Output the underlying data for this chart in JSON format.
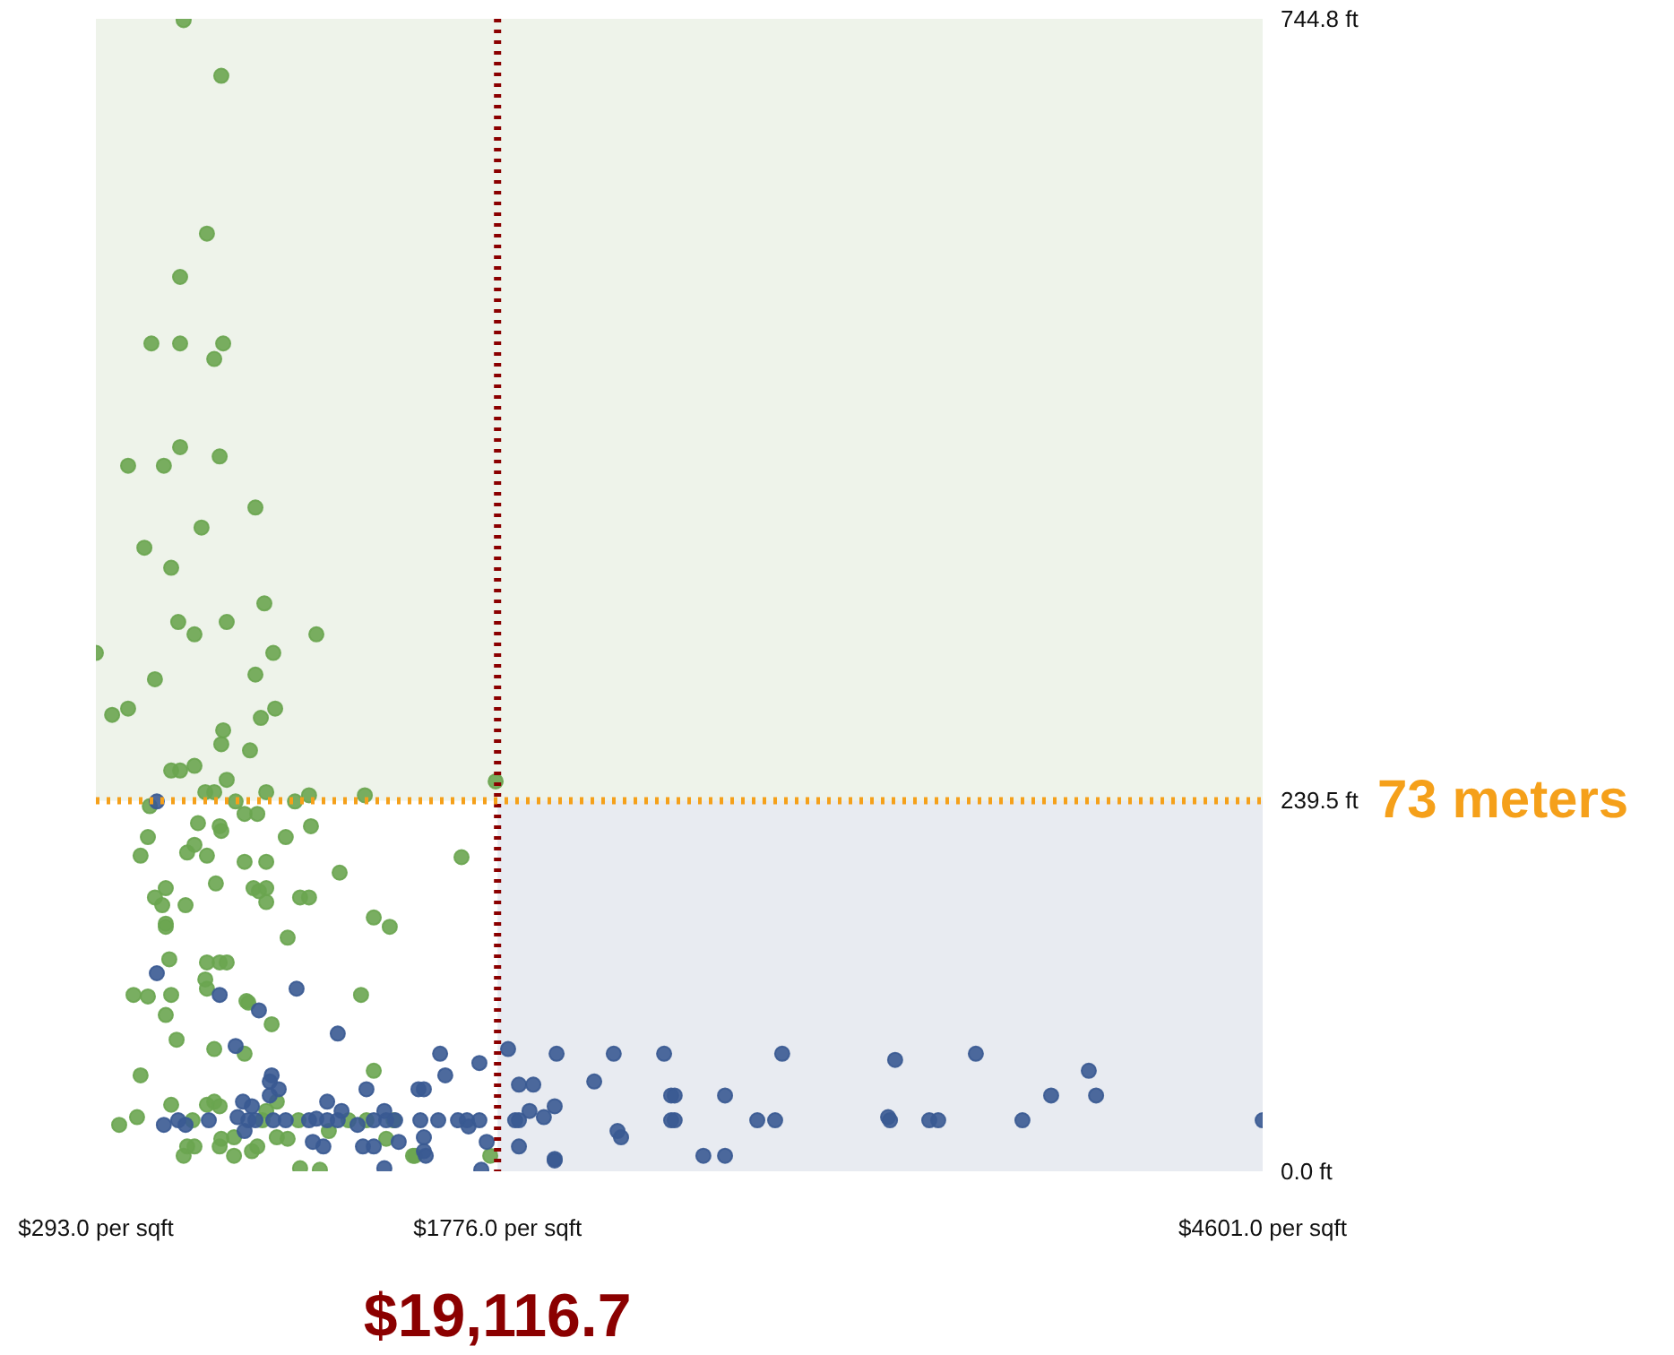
{
  "chart_data": {
    "type": "scatter",
    "marker": "circle",
    "xlim": [
      293,
      4601
    ],
    "ylim": [
      0,
      744.8
    ],
    "xticks": [
      {
        "value": 293,
        "label": "$293.0 per sqft"
      },
      {
        "value": 1776,
        "label": "$1776.0 per sqft"
      },
      {
        "value": 4601,
        "label": "$4601.0 per sqft"
      }
    ],
    "yticks": [
      {
        "value": 0,
        "label": "0.0 ft"
      },
      {
        "value": 239.5,
        "label": "239.5 ft"
      },
      {
        "value": 744.8,
        "label": "744.8 ft"
      }
    ],
    "bands": [
      {
        "axis": "x",
        "from": 1776,
        "to": 4601,
        "color": "#e8ebf1"
      },
      {
        "axis": "y",
        "from": 239.5,
        "to": 744.8,
        "color": "#eef3ea"
      }
    ],
    "annotations": [
      "$19,116.7"
    ],
    "ref_lines": [
      {
        "axis": "x",
        "value": 1776,
        "color": "#8b0000",
        "line_style": "dotted"
      },
      {
        "axis": "y",
        "value": 239.5,
        "label": "73 meters",
        "color": "#f5a01a",
        "line_style": "dotted"
      }
    ],
    "series": [
      {
        "color": "#6aa550",
        "x": [
          617,
          756,
          703,
          604,
          498,
          604,
          763,
          730,
          604,
          412,
          544,
          750,
          882,
          683,
          472,
          571,
          915,
          597,
          776,
          657,
          1107,
          293,
          948,
          882,
          511,
          353,
          412,
          955,
          902,
          763,
          756,
          862,
          571,
          604,
          657,
          776,
          697,
          730,
          922,
          1080,
          1286,
          809,
          1028,
          492,
          842,
          889,
          1769,
          670,
          750,
          756,
          1087,
          994,
          485,
          657,
          630,
          703,
          458,
          842,
          922,
          1193,
          736,
          551,
          511,
          538,
          624,
          875,
          895,
          922,
          922,
          1047,
          1080,
          1319,
          1378,
          551,
          551,
          1001,
          564,
          703,
          750,
          776,
          697,
          703,
          432,
          485,
          571,
          849,
          1272,
          1643,
          1319,
          856,
          942,
          551,
          591,
          730,
          842,
          458,
          961,
          571,
          703,
          730,
          750,
          922,
          379,
          445,
          650,
          908,
          1041,
          1226,
          1292,
          961,
          1001,
          1153,
          1365,
          750,
          756,
          803,
          657,
          630,
          617,
          803,
          869,
          889,
          1047,
          1120,
          1464,
          1392,
          1471,
          1749
        ],
        "values": [
          744,
          708,
          606,
          578,
          535,
          535,
          535,
          525,
          468,
          456,
          456,
          462,
          429,
          416,
          403,
          390,
          367,
          355,
          355,
          347,
          347,
          335,
          335,
          321,
          318,
          295,
          299,
          299,
          293,
          285,
          276,
          272,
          259,
          259,
          262,
          253,
          245,
          245,
          245,
          243,
          243,
          239,
          239,
          236,
          231,
          231,
          252,
          225,
          223,
          220,
          223,
          216,
          216,
          211,
          206,
          204,
          204,
          200,
          200,
          193,
          186,
          183,
          177,
          172,
          172,
          183,
          181,
          183,
          174,
          177,
          177,
          164,
          158,
          160,
          158,
          151,
          137,
          135,
          135,
          135,
          124,
          118,
          114,
          113,
          114,
          110,
          114,
          203,
          65,
          109,
          95,
          101,
          85,
          79,
          76,
          62,
          45,
          43,
          43,
          45,
          42,
          39,
          30,
          35,
          33,
          33,
          33,
          33,
          33,
          22,
          21,
          26,
          21,
          16,
          21,
          22,
          16,
          16,
          10,
          10,
          13,
          16,
          2,
          1,
          10,
          33,
          10,
          10
        ]
      },
      {
        "color": "#3a5a92",
        "x": [
          518,
          518,
          750,
          1034,
          1186,
          895,
          809,
          1292,
          1484,
          1504,
          942,
          935,
          968,
          935,
          836,
          869,
          1147,
          1200,
          1358,
          544,
          597,
          624,
          710,
          816,
          856,
          882,
          948,
          994,
          1080,
          1107,
          1147,
          1186,
          1259,
          1319,
          1365,
          1398,
          1491,
          842,
          1094,
          1133,
          1279,
          1319,
          1411,
          1504,
          1504,
          1358,
          1564,
          1709,
          1583,
          1557,
          1630,
          1663,
          1709,
          1511,
          1736,
          1669,
          1716,
          1815,
          1994,
          1855,
          1908,
          1894,
          1947,
          1987,
          1841,
          1855,
          1855,
          1987,
          2205,
          2391,
          2827,
          3244,
          3542,
          3959,
          2133,
          2417,
          2430,
          2616,
          3820,
          3986,
          2417,
          2430,
          2735,
          2801,
          3218,
          3225,
          3370,
          3403,
          3714,
          4601,
          2219,
          2232,
          2536,
          2616,
          1987
        ],
        "values": [
          239,
          128,
          114,
          118,
          89,
          104,
          81,
          53,
          53,
          53,
          62,
          58,
          53,
          49,
          45,
          42,
          45,
          39,
          39,
          30,
          33,
          30,
          33,
          35,
          33,
          33,
          33,
          33,
          33,
          34,
          33,
          33,
          30,
          33,
          33,
          33,
          33,
          26,
          19,
          16,
          16,
          16,
          19,
          22,
          13,
          2,
          76,
          70,
          62,
          33,
          33,
          33,
          33,
          10,
          19,
          29,
          1,
          79,
          76,
          56,
          56,
          39,
          35,
          42,
          33,
          33,
          16,
          8,
          76,
          76,
          76,
          72,
          76,
          65,
          58,
          49,
          49,
          49,
          49,
          49,
          33,
          33,
          33,
          33,
          35,
          33,
          33,
          33,
          33,
          33,
          26,
          22,
          10,
          10,
          7
        ]
      }
    ]
  }
}
